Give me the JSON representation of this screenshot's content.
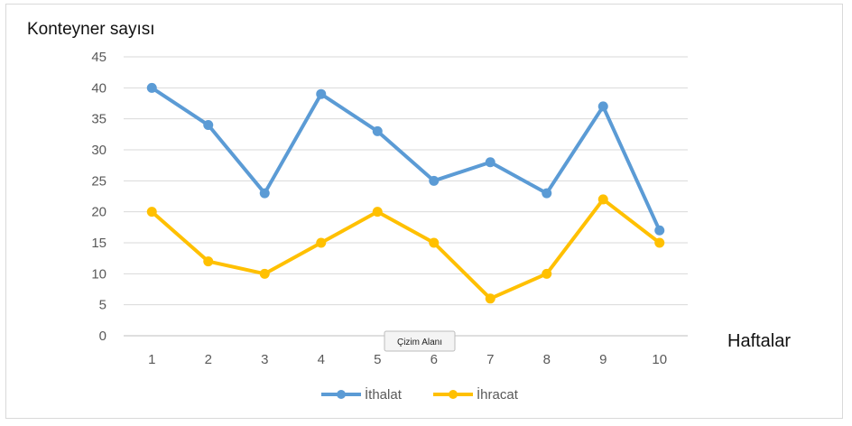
{
  "chart_data": {
    "type": "line",
    "ylabel": "Konteyner sayısı",
    "xlabel": "Haftalar",
    "x": [
      "1",
      "2",
      "3",
      "4",
      "5",
      "6",
      "7",
      "8",
      "9",
      "10"
    ],
    "ylim": [
      0,
      45
    ],
    "yticks": [
      0,
      5,
      10,
      15,
      20,
      25,
      30,
      35,
      40,
      45
    ],
    "grid": true,
    "legend_position": "bottom",
    "series": [
      {
        "name": "İthalat",
        "color": "#5b9bd5",
        "values": [
          40,
          34,
          23,
          39,
          33,
          25,
          28,
          23,
          37,
          17
        ]
      },
      {
        "name": "İhracat",
        "color": "#ffc000",
        "values": [
          20,
          12,
          10,
          15,
          20,
          15,
          6,
          10,
          22,
          15
        ]
      }
    ],
    "tooltip": "Çizim Alanı"
  }
}
